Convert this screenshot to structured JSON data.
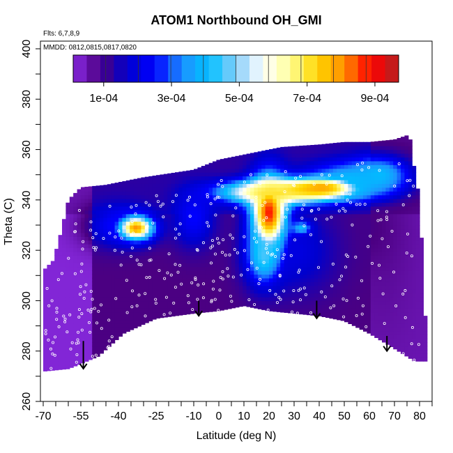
{
  "chart_data": {
    "type": "heatmap",
    "title": "ATOM1 Northbound OH_GMI",
    "annotations": [
      "Flts: 6,7,8,9",
      "MMDD: 0812,0815,0817,0820"
    ],
    "xlabel": "Latitude (deg N)",
    "ylabel": "Theta (C)",
    "xlim": [
      -70,
      85
    ],
    "ylim": [
      260,
      400
    ],
    "x_ticks": [
      -70,
      -55,
      -40,
      -25,
      -10,
      0,
      10,
      20,
      30,
      40,
      50,
      60,
      70,
      80
    ],
    "y_ticks": [
      260,
      280,
      300,
      320,
      340,
      360,
      380,
      400
    ],
    "colorbar": {
      "min": 1e-05,
      "max": 0.00097,
      "tick_values": [
        0.0001,
        0.0003,
        0.0005,
        0.0007,
        0.0009
      ],
      "tick_labels": [
        "1e-04",
        "3e-04",
        "5e-04",
        "7e-04",
        "9e-04"
      ],
      "colors": [
        "#8a2be2",
        "#4b0082",
        "#0000cd",
        "#0000ff",
        "#1e90ff",
        "#00bfff",
        "#87cefa",
        "#ffffff",
        "#ffff99",
        "#ffd700",
        "#ff8c00",
        "#ff0000",
        "#b22222"
      ]
    },
    "coverage_top": [
      [
        -70,
        312
      ],
      [
        -66,
        316
      ],
      [
        -63,
        327
      ],
      [
        -60,
        340
      ],
      [
        -55,
        345
      ],
      [
        -45,
        346
      ],
      [
        -30,
        349
      ],
      [
        -10,
        352
      ],
      [
        0,
        356
      ],
      [
        10,
        358
      ],
      [
        25,
        361
      ],
      [
        40,
        362
      ],
      [
        50,
        363
      ],
      [
        60,
        363
      ],
      [
        70,
        364
      ],
      [
        76,
        366
      ],
      [
        77,
        358
      ],
      [
        80,
        340
      ],
      [
        82,
        300
      ],
      [
        83,
        276
      ]
    ],
    "coverage_bottom": [
      [
        -70,
        272
      ],
      [
        -60,
        273
      ],
      [
        -55,
        275
      ],
      [
        -48,
        278
      ],
      [
        -38,
        287
      ],
      [
        -25,
        293
      ],
      [
        -10,
        295
      ],
      [
        0,
        296
      ],
      [
        10,
        298
      ],
      [
        20,
        296
      ],
      [
        30,
        295
      ],
      [
        40,
        294
      ],
      [
        50,
        292
      ],
      [
        60,
        287
      ],
      [
        70,
        281
      ],
      [
        78,
        276
      ],
      [
        83,
        276
      ]
    ],
    "features": [
      {
        "x": 20,
        "y": 335,
        "sx": 5,
        "sy": 10,
        "v": 0.00088
      },
      {
        "x": 22,
        "y": 343,
        "sx": 14,
        "sy": 3,
        "v": 0.0007
      },
      {
        "x": 32,
        "y": 344,
        "sx": 16,
        "sy": 3,
        "v": 0.00068
      },
      {
        "x": 41,
        "y": 345,
        "sx": 8,
        "sy": 2.5,
        "v": 0.00078
      },
      {
        "x": 18,
        "y": 318,
        "sx": 5,
        "sy": 8,
        "v": 0.00045
      },
      {
        "x": 33,
        "y": 329,
        "sx": 3,
        "sy": 2,
        "v": 0.0004
      },
      {
        "x": 30,
        "y": 320,
        "sx": 12,
        "sy": 12,
        "v": 0.0002
      },
      {
        "x": 52,
        "y": 348,
        "sx": 12,
        "sy": 5,
        "v": 0.0004
      },
      {
        "x": 64,
        "y": 350,
        "sx": 8,
        "sy": 5,
        "v": 0.0004
      },
      {
        "x": -33,
        "y": 329,
        "sx": 5,
        "sy": 3.5,
        "v": 0.0008
      },
      {
        "x": -40,
        "y": 330,
        "sx": 9,
        "sy": 6,
        "v": 0.00025
      },
      {
        "x": -10,
        "y": 333,
        "sx": 6,
        "sy": 8,
        "v": 0.00025
      },
      {
        "x": -15,
        "y": 345,
        "sx": 14,
        "sy": 3,
        "v": 0.00013
      },
      {
        "x": 65,
        "y": 318,
        "sx": 10,
        "sy": 25,
        "v": 7e-05
      },
      {
        "x": 55,
        "y": 330,
        "sx": 10,
        "sy": 10,
        "v": 0.0001
      }
    ],
    "arrows": [
      {
        "x": -54,
        "y_top": 284,
        "y_tip": 273
      },
      {
        "x": -8,
        "y_top": 300,
        "y_tip": 294
      },
      {
        "x": 39,
        "y_top": 300,
        "y_tip": 293
      },
      {
        "x": 67,
        "y_top": 286,
        "y_tip": 280
      }
    ]
  }
}
